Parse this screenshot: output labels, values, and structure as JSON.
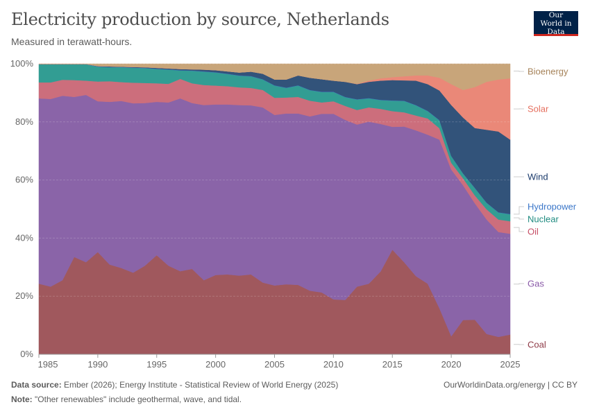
{
  "header": {
    "title": "Electricity production by source, Netherlands",
    "subtitle": "Measured in terawatt-hours.",
    "logo_text": "Our World in Data"
  },
  "footer": {
    "source_label": "Data source:",
    "source_text": "Ember (2026); Energy Institute - Statistical Review of World Energy (2025)",
    "note_label": "Note:",
    "note_text": "\"Other renewables\" include geothermal, wave, and tidal.",
    "url": "OurWorldinData.org/energy | CC BY"
  },
  "chart_data": {
    "type": "area",
    "stacked": "percent",
    "title": "Electricity production by source, Netherlands",
    "subtitle": "Measured in terawatt-hours.",
    "xlim": [
      1985,
      2025
    ],
    "ylim": [
      0,
      100
    ],
    "x_ticks": [
      "1985",
      "1990",
      "1995",
      "2000",
      "2005",
      "2010",
      "2015",
      "2020",
      "2025"
    ],
    "y_ticks": [
      "0%",
      "20%",
      "40%",
      "60%",
      "80%",
      "100%"
    ],
    "grid": "horizontal dashed",
    "legend_placement": "right",
    "x": [
      1985,
      1986,
      1987,
      1988,
      1989,
      1990,
      1991,
      1992,
      1993,
      1994,
      1995,
      1996,
      1997,
      1998,
      1999,
      2000,
      2001,
      2002,
      2003,
      2004,
      2005,
      2006,
      2007,
      2008,
      2009,
      2010,
      2011,
      2012,
      2013,
      2014,
      2015,
      2016,
      2017,
      2018,
      2019,
      2020,
      2021,
      2022,
      2023,
      2024,
      2025
    ],
    "series": [
      {
        "name": "Coal",
        "color": "#a0585d",
        "label_color": "#8e3b47",
        "values": [
          24.3,
          23.3,
          25.5,
          33.5,
          31.7,
          35.2,
          30.9,
          29.7,
          28.1,
          30.5,
          34.1,
          30.5,
          28.6,
          29.4,
          25.5,
          27.3,
          27.5,
          27.1,
          27.5,
          24.7,
          23.7,
          24.1,
          23.9,
          21.9,
          21.3,
          18.9,
          18.7,
          23.3,
          24.3,
          28.5,
          36.0,
          31.7,
          26.9,
          24.3,
          15.8,
          6.2,
          11.8,
          11.9,
          7.0,
          6.0,
          6.8
        ]
      },
      {
        "name": "Gas",
        "color": "#8a64a8",
        "label_color": "#8a5aa8",
        "values": [
          63.8,
          64.6,
          63.5,
          55.1,
          57.6,
          51.9,
          56.0,
          57.5,
          58.3,
          56.0,
          52.8,
          56.2,
          59.5,
          57.1,
          60.3,
          58.7,
          58.5,
          58.7,
          58.2,
          60.3,
          58.7,
          58.8,
          59.0,
          60.0,
          61.5,
          63.9,
          62.0,
          55.8,
          55.8,
          50.8,
          42.3,
          46.7,
          50.2,
          51.3,
          58.1,
          57.4,
          46.4,
          40.1,
          39.4,
          36.1,
          34.7
        ]
      },
      {
        "name": "Oil",
        "color": "#cc6e7c",
        "label_color": "#c64f66",
        "values": [
          5.5,
          5.7,
          5.5,
          5.8,
          4.9,
          6.8,
          7.1,
          6.5,
          7.1,
          6.9,
          6.4,
          6.4,
          6.7,
          6.8,
          6.9,
          6.5,
          6.3,
          6.1,
          6.0,
          6.0,
          5.9,
          5.5,
          5.7,
          5.4,
          3.9,
          4.3,
          4.8,
          5.0,
          4.9,
          5.2,
          5.4,
          4.9,
          5.1,
          5.6,
          3.9,
          2.3,
          2.4,
          2.7,
          3.5,
          4.3,
          4.3
        ]
      },
      {
        "name": "Nuclear",
        "color": "#329d93",
        "label_color": "#1f8b80",
        "values": [
          6.2,
          6.2,
          5.3,
          5.4,
          5.6,
          5.1,
          4.8,
          5.1,
          5.1,
          5.1,
          4.9,
          4.9,
          2.9,
          4.3,
          4.6,
          4.5,
          4.2,
          4.0,
          4.0,
          3.6,
          4.2,
          3.3,
          3.9,
          3.6,
          3.6,
          3.2,
          3.0,
          3.6,
          3.1,
          3.0,
          3.6,
          3.9,
          3.5,
          2.5,
          2.7,
          2.3,
          1.6,
          2.5,
          2.2,
          2.4,
          2.4
        ]
      },
      {
        "name": "Hydropower",
        "color": "#3f77c8",
        "label_color": "#3a76c8",
        "values": [
          0.1,
          0.1,
          0.1,
          0.1,
          0.1,
          0.1,
          0.1,
          0.1,
          0.1,
          0.1,
          0.1,
          0.1,
          0.1,
          0.1,
          0.1,
          0.1,
          0.1,
          0.1,
          0.1,
          0.1,
          0.1,
          0.1,
          0.1,
          0.1,
          0.1,
          0.1,
          0.1,
          0.1,
          0.1,
          0.1,
          0.1,
          0.1,
          0.1,
          0.1,
          0.1,
          0.1,
          0.1,
          0.1,
          0.1,
          0.1,
          0.1
        ]
      },
      {
        "name": "Wind",
        "color": "#32537a",
        "label_color": "#1a3a6b",
        "values": [
          0,
          0,
          0,
          0,
          0,
          0.1,
          0.2,
          0.1,
          0.2,
          0.2,
          0.3,
          0.3,
          0.4,
          0.4,
          0.6,
          0.7,
          0.8,
          1.0,
          1.5,
          1.9,
          2.0,
          2.8,
          3.4,
          4.2,
          4.3,
          3.8,
          5.2,
          5.2,
          5.6,
          6.6,
          7.0,
          7.0,
          8.4,
          9.2,
          10.2,
          17.5,
          19.2,
          20.6,
          25.1,
          27.8,
          25.6
        ]
      },
      {
        "name": "Solar",
        "color": "#ea8878",
        "label_color": "#e56f5e",
        "values": [
          0,
          0,
          0,
          0,
          0,
          0,
          0,
          0,
          0,
          0,
          0,
          0,
          0,
          0,
          0,
          0,
          0,
          0,
          0,
          0,
          0,
          0,
          0,
          0,
          0,
          0,
          0,
          0.1,
          0.4,
          0.8,
          1.0,
          1.4,
          1.8,
          3.0,
          4.4,
          7.2,
          9.5,
          14.1,
          16.5,
          17.9,
          21.1
        ]
      },
      {
        "name": "Bioenergy",
        "color": "#c8a57a",
        "label_color": "#a6835a",
        "values": [
          0.1,
          0.1,
          0.1,
          0.1,
          0.1,
          0.8,
          0.9,
          1.0,
          1.1,
          1.2,
          1.4,
          1.6,
          1.8,
          1.9,
          2.0,
          2.2,
          2.6,
          3.0,
          2.7,
          3.4,
          5.4,
          5.4,
          4.0,
          4.8,
          5.3,
          5.8,
          6.2,
          6.9,
          5.8,
          5.0,
          4.6,
          4.3,
          4.0,
          4.0,
          4.8,
          7.0,
          9.0,
          8.0,
          6.2,
          5.4,
          5.0
        ]
      }
    ]
  }
}
